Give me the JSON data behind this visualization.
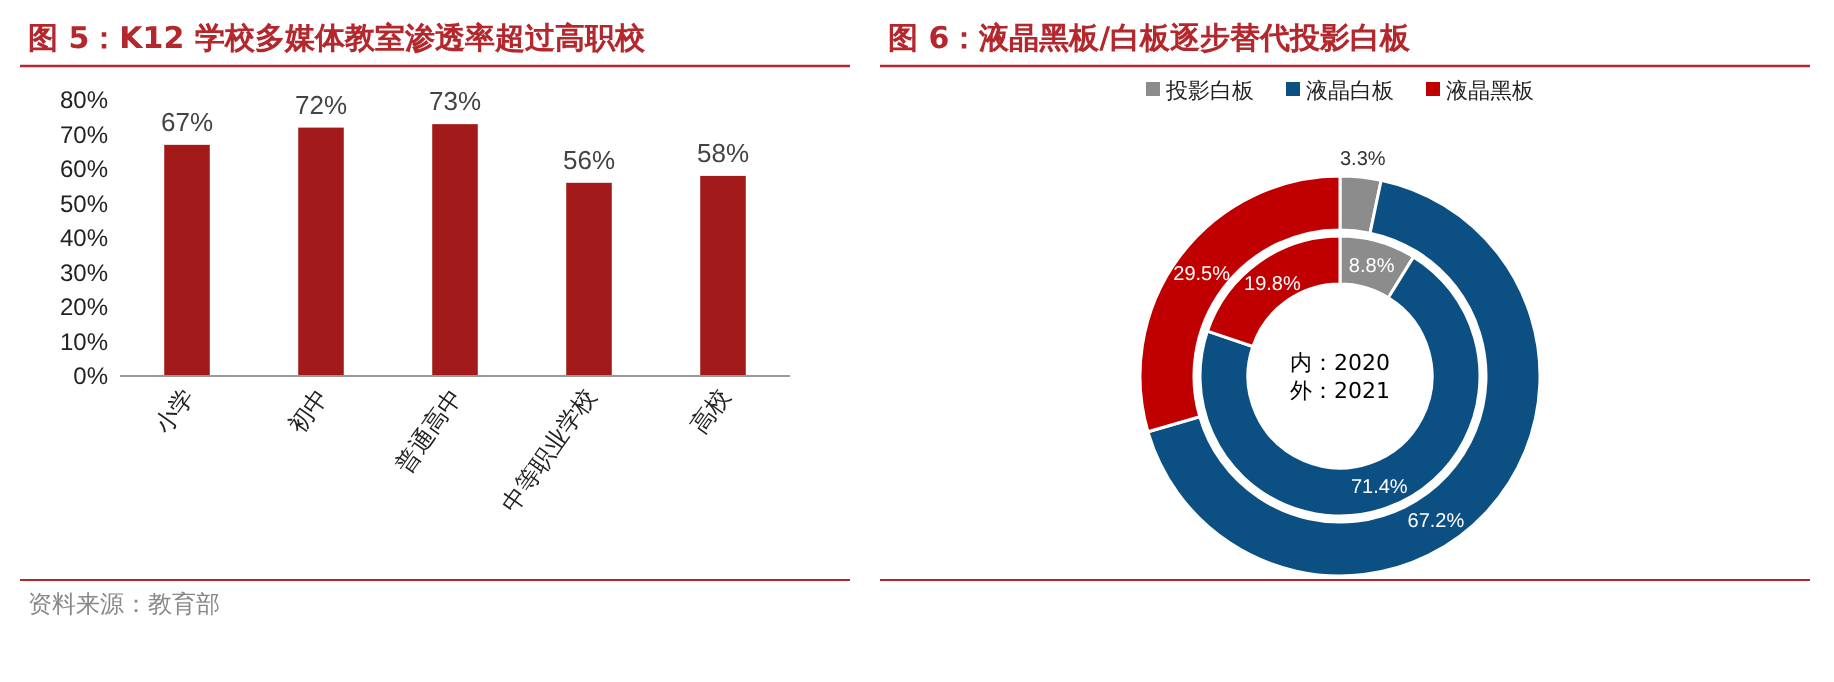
{
  "chart_data": [
    {
      "type": "bar",
      "title": "图 5：K12 学校多媒体教室渗透率超过高职校",
      "categories": [
        "小学",
        "初中",
        "普通高中",
        "中等职业学校",
        "高校"
      ],
      "values": [
        67,
        72,
        73,
        56,
        58
      ],
      "color": "#a31a1a",
      "value_labels": [
        "67%",
        "72%",
        "73%",
        "56%",
        "58%"
      ],
      "ylim": [
        0,
        80
      ],
      "yticks": [
        {
          "value": 0,
          "label": "0%"
        },
        {
          "value": 10,
          "label": "10%"
        },
        {
          "value": 20,
          "label": "20%"
        },
        {
          "value": 30,
          "label": "30%"
        },
        {
          "value": 40,
          "label": "40%"
        },
        {
          "value": 50,
          "label": "50%"
        },
        {
          "value": 60,
          "label": "60%"
        },
        {
          "value": 70,
          "label": "70%"
        },
        {
          "value": 80,
          "label": "80%"
        }
      ],
      "grid": false,
      "annotations": [
        "资料来源：教育部"
      ]
    },
    {
      "type": "donut",
      "title": "图 6：液晶黑板/白板逐步替代投影白板",
      "categories": [
        "投影白板",
        "液晶白板",
        "液晶黑板"
      ],
      "colors": [
        "#8c8c8c",
        "#0b4f83",
        "#c00000"
      ],
      "series": [
        {
          "values": [
            8.8,
            71.4,
            19.8
          ],
          "value_labels": [
            "8.8%",
            "71.4%",
            "19.8%"
          ]
        },
        {
          "values": [
            3.3,
            67.2,
            29.5
          ],
          "value_labels": [
            "3.3%",
            "67.2%",
            "29.5%"
          ]
        }
      ],
      "legend": "top",
      "annotations": [
        "内：2020",
        "外：2021"
      ]
    }
  ]
}
